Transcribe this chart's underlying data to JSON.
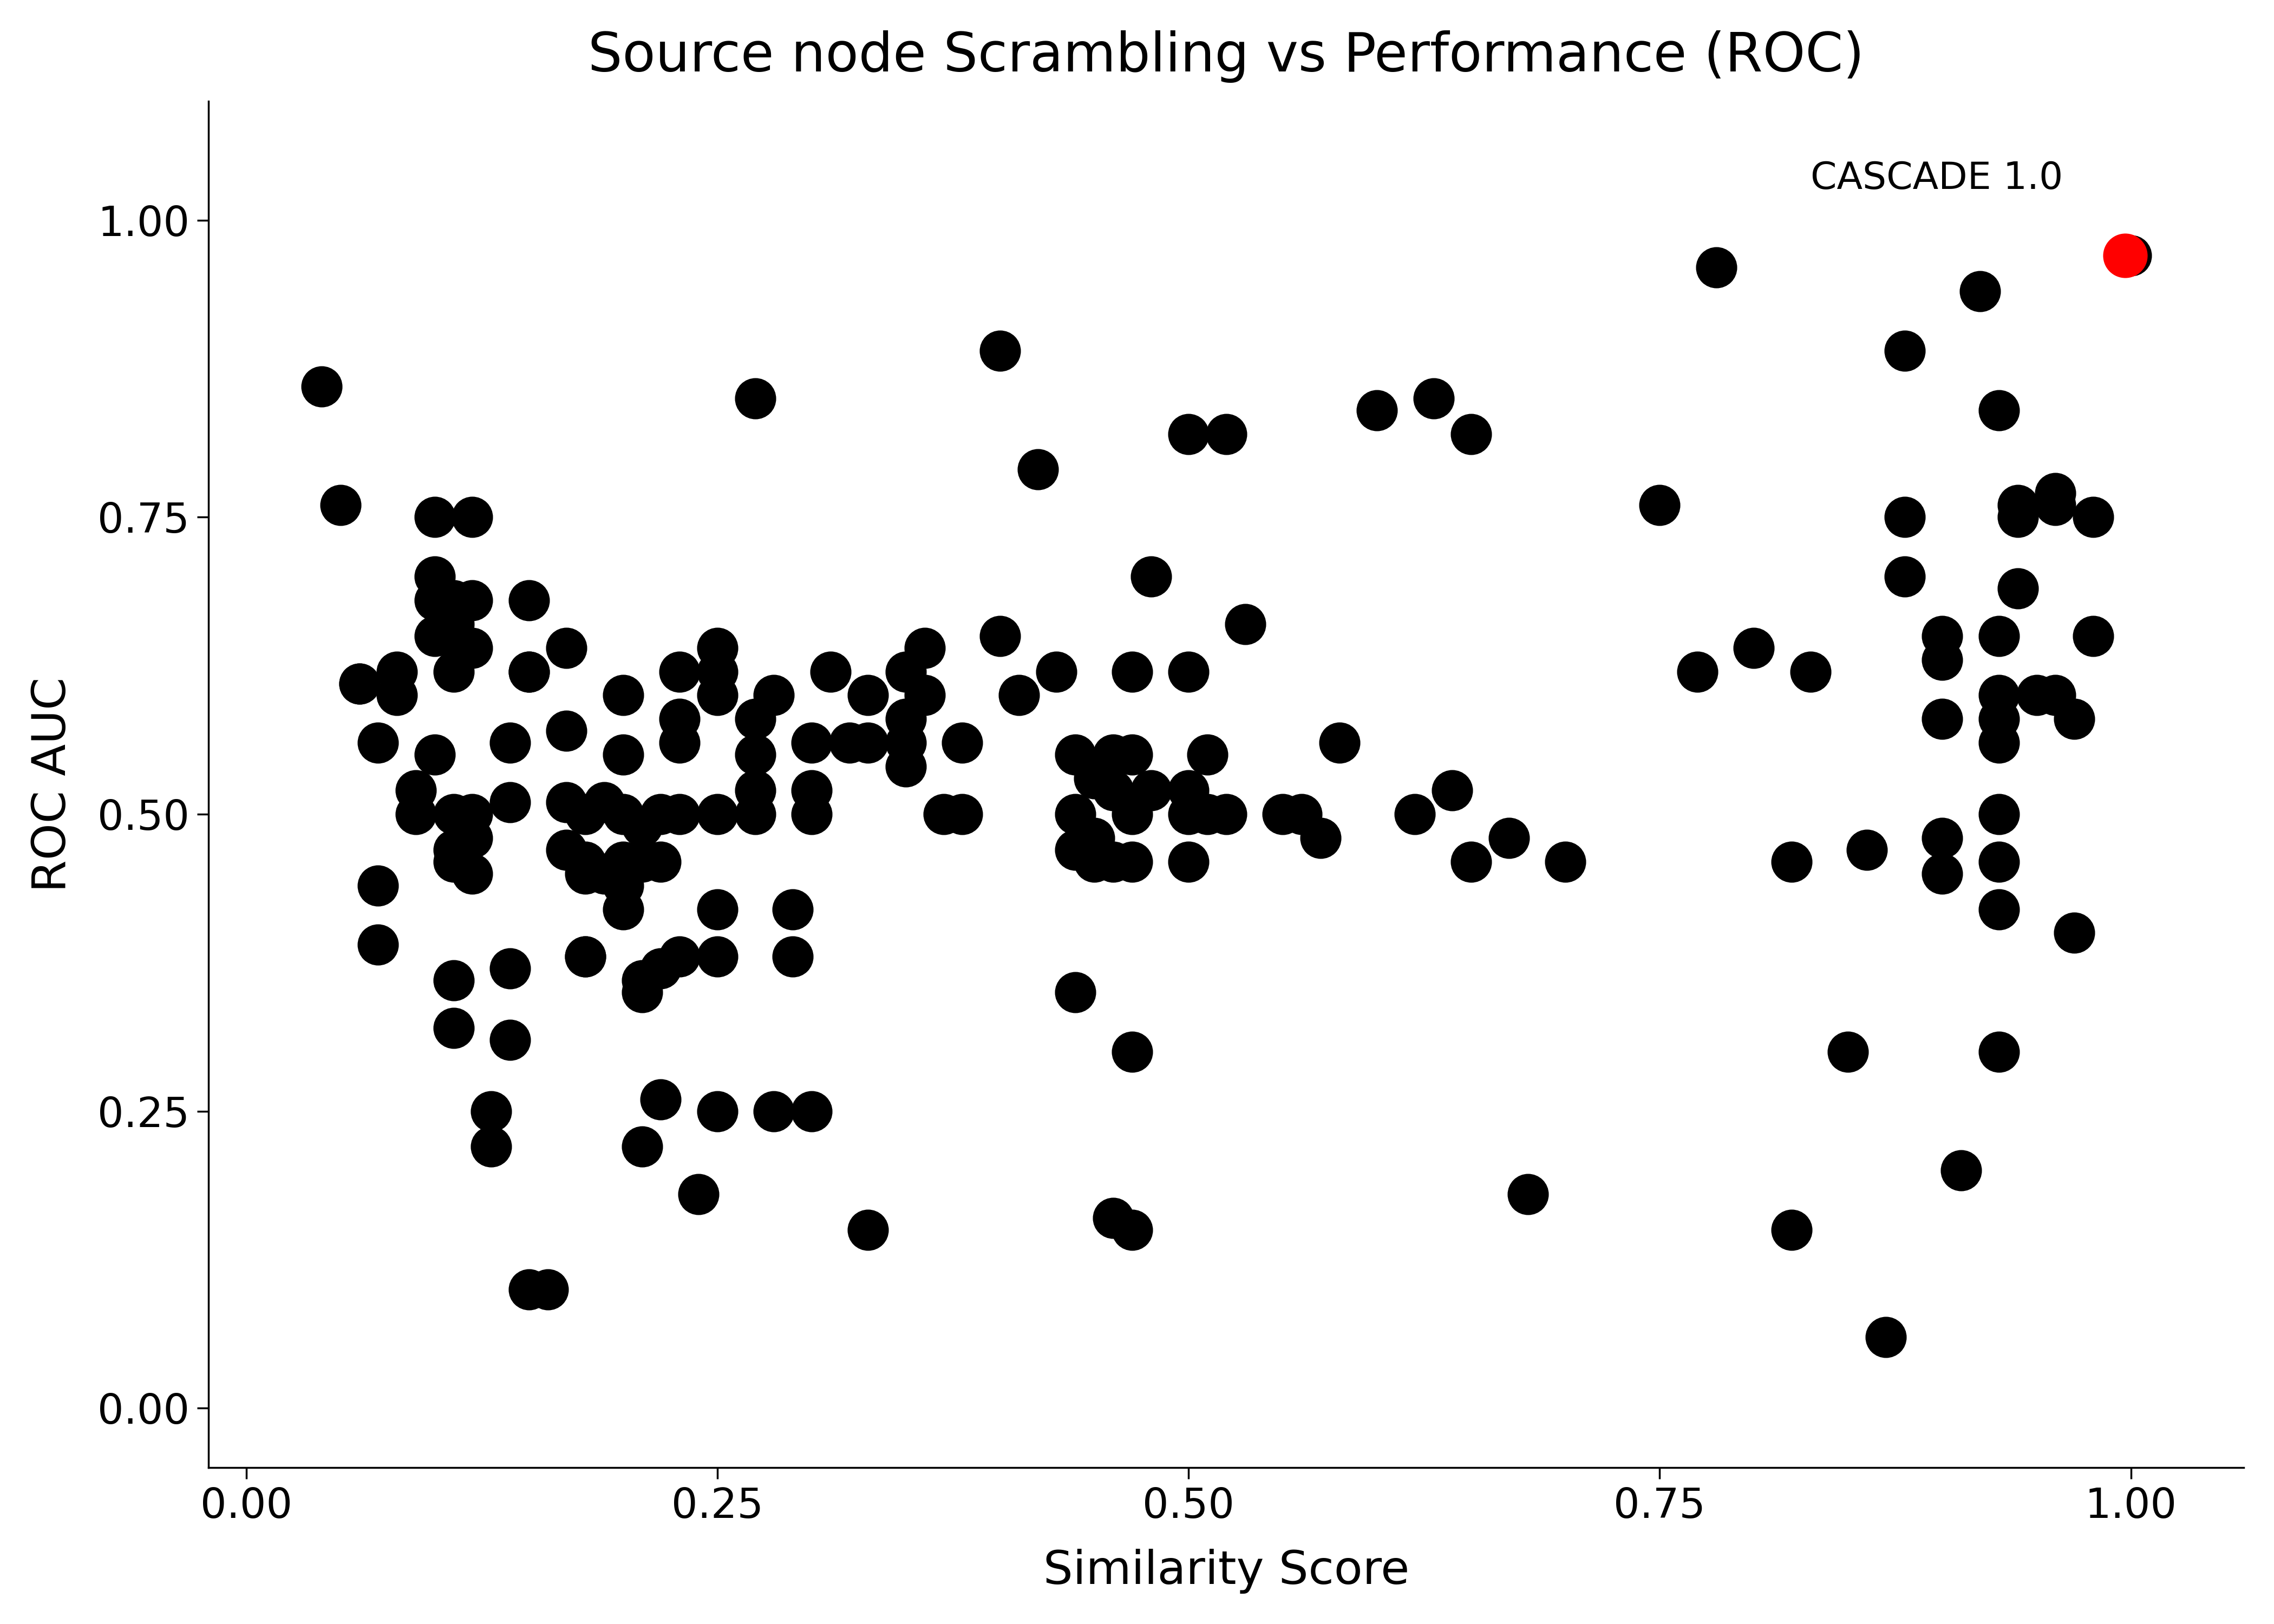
{
  "title": "Source node Scrambling vs Performance (ROC)",
  "xlabel": "Similarity Score",
  "ylabel": "ROC AUC",
  "xlim": [
    -0.02,
    1.06
  ],
  "ylim": [
    -0.05,
    1.1
  ],
  "xticks": [
    0.0,
    0.25,
    0.5,
    0.75,
    1.0
  ],
  "yticks": [
    0.0,
    0.25,
    0.5,
    0.75,
    1.0
  ],
  "background_color": "#ffffff",
  "title_fontsize": 72,
  "label_fontsize": 62,
  "tick_fontsize": 55,
  "annotation_fontsize": 50,
  "scatter_points": [
    [
      0.04,
      0.86
    ],
    [
      0.05,
      0.76
    ],
    [
      0.06,
      0.61
    ],
    [
      0.06,
      0.61
    ],
    [
      0.07,
      0.56
    ],
    [
      0.07,
      0.44
    ],
    [
      0.07,
      0.39
    ],
    [
      0.08,
      0.62
    ],
    [
      0.08,
      0.6
    ],
    [
      0.09,
      0.52
    ],
    [
      0.09,
      0.5
    ],
    [
      0.1,
      0.75
    ],
    [
      0.1,
      0.7
    ],
    [
      0.1,
      0.68
    ],
    [
      0.1,
      0.65
    ],
    [
      0.1,
      0.55
    ],
    [
      0.11,
      0.68
    ],
    [
      0.11,
      0.66
    ],
    [
      0.11,
      0.65
    ],
    [
      0.11,
      0.62
    ],
    [
      0.11,
      0.5
    ],
    [
      0.11,
      0.47
    ],
    [
      0.11,
      0.46
    ],
    [
      0.11,
      0.36
    ],
    [
      0.11,
      0.32
    ],
    [
      0.12,
      0.75
    ],
    [
      0.12,
      0.68
    ],
    [
      0.12,
      0.64
    ],
    [
      0.12,
      0.5
    ],
    [
      0.12,
      0.48
    ],
    [
      0.12,
      0.45
    ],
    [
      0.13,
      0.25
    ],
    [
      0.13,
      0.22
    ],
    [
      0.14,
      0.56
    ],
    [
      0.14,
      0.51
    ],
    [
      0.14,
      0.37
    ],
    [
      0.14,
      0.31
    ],
    [
      0.15,
      0.68
    ],
    [
      0.15,
      0.62
    ],
    [
      0.15,
      0.62
    ],
    [
      0.15,
      0.1
    ],
    [
      0.16,
      0.1
    ],
    [
      0.17,
      0.64
    ],
    [
      0.17,
      0.57
    ],
    [
      0.17,
      0.51
    ],
    [
      0.17,
      0.47
    ],
    [
      0.18,
      0.5
    ],
    [
      0.18,
      0.46
    ],
    [
      0.18,
      0.45
    ],
    [
      0.18,
      0.38
    ],
    [
      0.18,
      0.38
    ],
    [
      0.19,
      0.51
    ],
    [
      0.19,
      0.45
    ],
    [
      0.2,
      0.6
    ],
    [
      0.2,
      0.55
    ],
    [
      0.2,
      0.5
    ],
    [
      0.2,
      0.46
    ],
    [
      0.2,
      0.44
    ],
    [
      0.2,
      0.42
    ],
    [
      0.21,
      0.49
    ],
    [
      0.21,
      0.46
    ],
    [
      0.21,
      0.36
    ],
    [
      0.21,
      0.35
    ],
    [
      0.21,
      0.22
    ],
    [
      0.22,
      0.5
    ],
    [
      0.22,
      0.46
    ],
    [
      0.22,
      0.37
    ],
    [
      0.22,
      0.26
    ],
    [
      0.23,
      0.62
    ],
    [
      0.23,
      0.58
    ],
    [
      0.23,
      0.56
    ],
    [
      0.23,
      0.5
    ],
    [
      0.23,
      0.38
    ],
    [
      0.24,
      0.18
    ],
    [
      0.25,
      0.64
    ],
    [
      0.25,
      0.62
    ],
    [
      0.25,
      0.6
    ],
    [
      0.25,
      0.5
    ],
    [
      0.25,
      0.42
    ],
    [
      0.25,
      0.38
    ],
    [
      0.25,
      0.25
    ],
    [
      0.27,
      0.85
    ],
    [
      0.27,
      0.58
    ],
    [
      0.27,
      0.55
    ],
    [
      0.27,
      0.52
    ],
    [
      0.27,
      0.5
    ],
    [
      0.28,
      0.6
    ],
    [
      0.28,
      0.25
    ],
    [
      0.29,
      0.42
    ],
    [
      0.29,
      0.38
    ],
    [
      0.3,
      0.56
    ],
    [
      0.3,
      0.52
    ],
    [
      0.3,
      0.5
    ],
    [
      0.3,
      0.25
    ],
    [
      0.31,
      0.62
    ],
    [
      0.32,
      0.56
    ],
    [
      0.33,
      0.6
    ],
    [
      0.33,
      0.56
    ],
    [
      0.33,
      0.15
    ],
    [
      0.35,
      0.62
    ],
    [
      0.35,
      0.58
    ],
    [
      0.35,
      0.56
    ],
    [
      0.35,
      0.54
    ],
    [
      0.36,
      0.64
    ],
    [
      0.36,
      0.6
    ],
    [
      0.37,
      0.5
    ],
    [
      0.38,
      0.56
    ],
    [
      0.38,
      0.5
    ],
    [
      0.4,
      0.89
    ],
    [
      0.4,
      0.65
    ],
    [
      0.41,
      0.6
    ],
    [
      0.42,
      0.79
    ],
    [
      0.43,
      0.62
    ],
    [
      0.44,
      0.55
    ],
    [
      0.44,
      0.5
    ],
    [
      0.44,
      0.47
    ],
    [
      0.44,
      0.35
    ],
    [
      0.45,
      0.53
    ],
    [
      0.45,
      0.48
    ],
    [
      0.45,
      0.46
    ],
    [
      0.46,
      0.55
    ],
    [
      0.46,
      0.52
    ],
    [
      0.46,
      0.46
    ],
    [
      0.46,
      0.16
    ],
    [
      0.47,
      0.62
    ],
    [
      0.47,
      0.55
    ],
    [
      0.47,
      0.5
    ],
    [
      0.47,
      0.46
    ],
    [
      0.47,
      0.3
    ],
    [
      0.47,
      0.15
    ],
    [
      0.48,
      0.7
    ],
    [
      0.48,
      0.52
    ],
    [
      0.5,
      0.82
    ],
    [
      0.5,
      0.62
    ],
    [
      0.5,
      0.52
    ],
    [
      0.5,
      0.5
    ],
    [
      0.5,
      0.46
    ],
    [
      0.51,
      0.55
    ],
    [
      0.51,
      0.5
    ],
    [
      0.52,
      0.82
    ],
    [
      0.52,
      0.5
    ],
    [
      0.53,
      0.66
    ],
    [
      0.55,
      0.5
    ],
    [
      0.56,
      0.5
    ],
    [
      0.57,
      0.48
    ],
    [
      0.58,
      0.56
    ],
    [
      0.6,
      0.84
    ],
    [
      0.62,
      0.5
    ],
    [
      0.63,
      0.85
    ],
    [
      0.64,
      0.52
    ],
    [
      0.65,
      0.82
    ],
    [
      0.65,
      0.46
    ],
    [
      0.67,
      0.48
    ],
    [
      0.68,
      0.18
    ],
    [
      0.7,
      0.46
    ],
    [
      0.75,
      0.76
    ],
    [
      0.77,
      0.62
    ],
    [
      0.78,
      0.96
    ],
    [
      0.8,
      0.64
    ],
    [
      0.82,
      0.46
    ],
    [
      0.82,
      0.15
    ],
    [
      0.83,
      0.62
    ],
    [
      0.85,
      0.3
    ],
    [
      0.86,
      0.47
    ],
    [
      0.87,
      0.06
    ],
    [
      0.88,
      0.89
    ],
    [
      0.88,
      0.75
    ],
    [
      0.88,
      0.7
    ],
    [
      0.9,
      0.65
    ],
    [
      0.9,
      0.63
    ],
    [
      0.9,
      0.58
    ],
    [
      0.9,
      0.48
    ],
    [
      0.9,
      0.45
    ],
    [
      0.91,
      0.2
    ],
    [
      0.92,
      0.94
    ],
    [
      0.93,
      0.84
    ],
    [
      0.93,
      0.65
    ],
    [
      0.93,
      0.6
    ],
    [
      0.93,
      0.58
    ],
    [
      0.93,
      0.56
    ],
    [
      0.93,
      0.5
    ],
    [
      0.93,
      0.46
    ],
    [
      0.93,
      0.42
    ],
    [
      0.93,
      0.3
    ],
    [
      0.94,
      0.76
    ],
    [
      0.94,
      0.75
    ],
    [
      0.94,
      0.69
    ],
    [
      0.95,
      0.6
    ],
    [
      0.96,
      0.77
    ],
    [
      0.96,
      0.76
    ],
    [
      0.96,
      0.6
    ],
    [
      0.97,
      0.58
    ],
    [
      0.97,
      0.4
    ],
    [
      0.98,
      0.75
    ],
    [
      0.98,
      0.65
    ],
    [
      1.0,
      0.97
    ]
  ],
  "cascade_point": [
    0.997,
    0.97
  ],
  "cascade_label": "CASCADE 1.0",
  "point_color": "#000000",
  "cascade_color": "#ff0000",
  "point_size": 300,
  "cascade_size": 350
}
